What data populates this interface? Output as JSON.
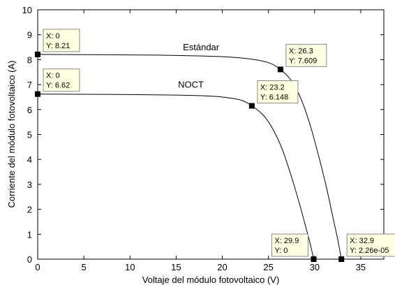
{
  "chart_data": {
    "type": "line",
    "title": "",
    "xlabel": "Voltaje del módulo fotovoltaico (V)",
    "ylabel": "Corriente del módulo fotovoltaico (A)",
    "xlim": [
      0,
      37.5
    ],
    "ylim": [
      0,
      10
    ],
    "xticks": [
      0,
      5,
      10,
      15,
      20,
      25,
      30,
      35
    ],
    "yticks": [
      0,
      1,
      2,
      3,
      4,
      5,
      6,
      7,
      8,
      9,
      10
    ],
    "grid": false,
    "legend": "none",
    "series": [
      {
        "name": "Estándar",
        "x": [
          0,
          5,
          10,
          15,
          20,
          23,
          25,
          26.3,
          27.5,
          28.5,
          29.5,
          30.5,
          31.3,
          32,
          32.5,
          32.9
        ],
        "y": [
          8.21,
          8.2,
          8.19,
          8.17,
          8.12,
          8.03,
          7.88,
          7.609,
          7.15,
          6.45,
          5.4,
          4.05,
          2.85,
          1.65,
          0.8,
          2.26e-05
        ]
      },
      {
        "name": "NOCT",
        "x": [
          0,
          5,
          10,
          15,
          18,
          20,
          22,
          23.2,
          24.5,
          25.5,
          26.5,
          27.5,
          28.3,
          29,
          29.5,
          29.9
        ],
        "y": [
          6.62,
          6.61,
          6.6,
          6.58,
          6.55,
          6.5,
          6.38,
          6.148,
          5.75,
          5.2,
          4.4,
          3.3,
          2.3,
          1.35,
          0.65,
          0
        ]
      }
    ],
    "series_labels": [
      {
        "text": "Estándar",
        "x": 17.7,
        "y": 8.38
      },
      {
        "text": "NOCT",
        "x": 16.6,
        "y": 6.88
      }
    ],
    "datatips": [
      {
        "x": 0,
        "y": 8.21,
        "x_text": "X: 0",
        "y_text": "Y: 8.21",
        "side": "above-right"
      },
      {
        "x": 0,
        "y": 6.62,
        "x_text": "X: 0",
        "y_text": "Y: 6.62",
        "side": "above-right"
      },
      {
        "x": 26.3,
        "y": 7.609,
        "x_text": "X: 26.3",
        "y_text": "Y: 7.609",
        "side": "above-right"
      },
      {
        "x": 23.2,
        "y": 6.148,
        "x_text": "X: 23.2",
        "y_text": "Y: 6.148",
        "side": "above-right"
      },
      {
        "x": 29.9,
        "y": 0,
        "x_text": "X: 29.9",
        "y_text": "Y: 0",
        "side": "above-left"
      },
      {
        "x": 32.9,
        "y": 2.26e-05,
        "x_text": "X: 32.9",
        "y_text": "Y: 2.26e-05",
        "side": "above-right"
      }
    ],
    "colors": {
      "line": "#000000",
      "axes": "#000000",
      "tip_fill": "#ffffe1",
      "tip_border": "#8a8a8a",
      "marker": "#000000"
    }
  }
}
